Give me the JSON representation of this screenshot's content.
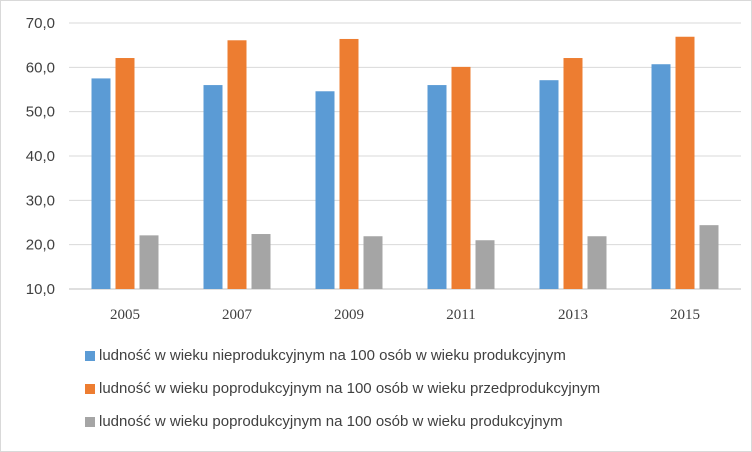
{
  "chart_data": {
    "type": "bar",
    "title": "",
    "xlabel": "",
    "ylabel": "",
    "categories": [
      "2005",
      "2007",
      "2009",
      "2011",
      "2013",
      "2015"
    ],
    "ylim": [
      10,
      70
    ],
    "yticks": [
      "10,0",
      "20,0",
      "30,0",
      "40,0",
      "50,0",
      "60,0",
      "70,0"
    ],
    "grid": true,
    "legend_position": "bottom",
    "series": [
      {
        "name": "ludność w wieku nieprodukcyjnym na 100 osób w wieku produkcyjnym",
        "color": "#5b9bd5",
        "values": [
          57.5,
          56.0,
          54.6,
          56.0,
          57.1,
          60.7
        ]
      },
      {
        "name": "ludność w wieku poprodukcyjnym na 100 osób w wieku przedprodukcyjnym",
        "color": "#ed7d31",
        "values": [
          62.1,
          66.1,
          66.4,
          60.1,
          62.1,
          66.9
        ]
      },
      {
        "name": "ludność w wieku poprodukcyjnym na 100 osób w wieku produkcyjnym",
        "color": "#a5a5a5",
        "values": [
          22.1,
          22.4,
          21.9,
          21.0,
          21.9,
          24.4
        ]
      }
    ]
  }
}
